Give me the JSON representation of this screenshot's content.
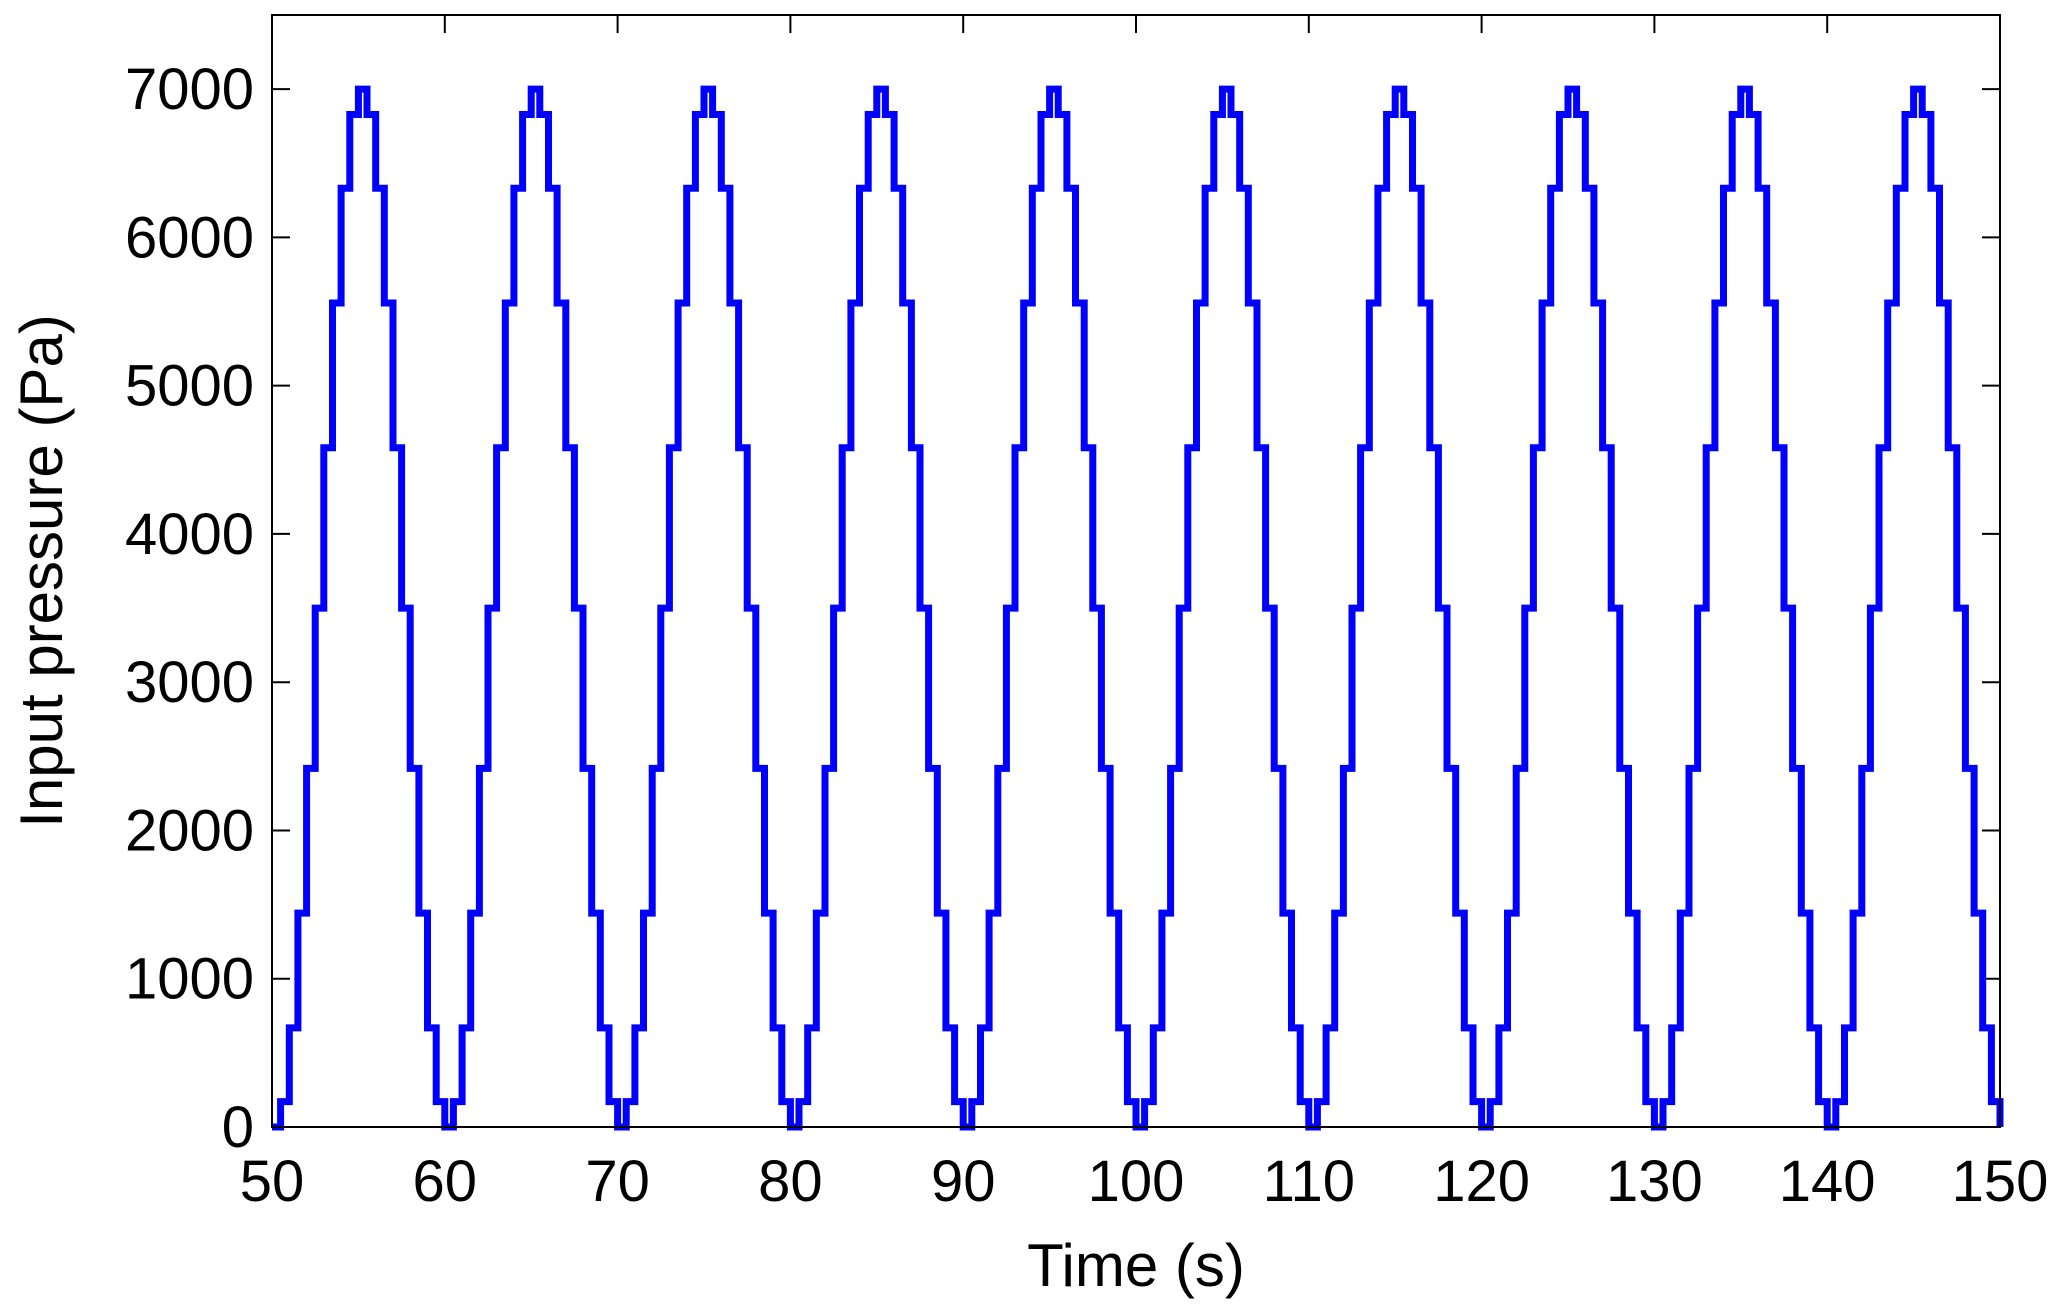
{
  "chart_data": {
    "type": "line",
    "title": "",
    "xlabel": "Time (s)",
    "ylabel": "Input pressure (Pa)",
    "xlim": [
      50,
      150
    ],
    "ylim": [
      0,
      7500
    ],
    "xticks": [
      "50",
      "60",
      "70",
      "80",
      "90",
      "100",
      "110",
      "120",
      "130",
      "140",
      "150"
    ],
    "yticks": [
      "0",
      "1000",
      "2000",
      "3000",
      "4000",
      "5000",
      "6000",
      "7000"
    ],
    "grid": false,
    "legend": "none",
    "series": [
      {
        "color": "#0000ff",
        "style": "staircase",
        "period_s": 10,
        "peak": 7000,
        "min": 0,
        "troughs_at": [
          50,
          60,
          70,
          80,
          90,
          100,
          110,
          120,
          130,
          140,
          150
        ],
        "peaks_at": [
          55,
          65,
          75,
          85,
          95,
          105,
          115,
          125,
          135,
          145
        ]
      }
    ]
  }
}
